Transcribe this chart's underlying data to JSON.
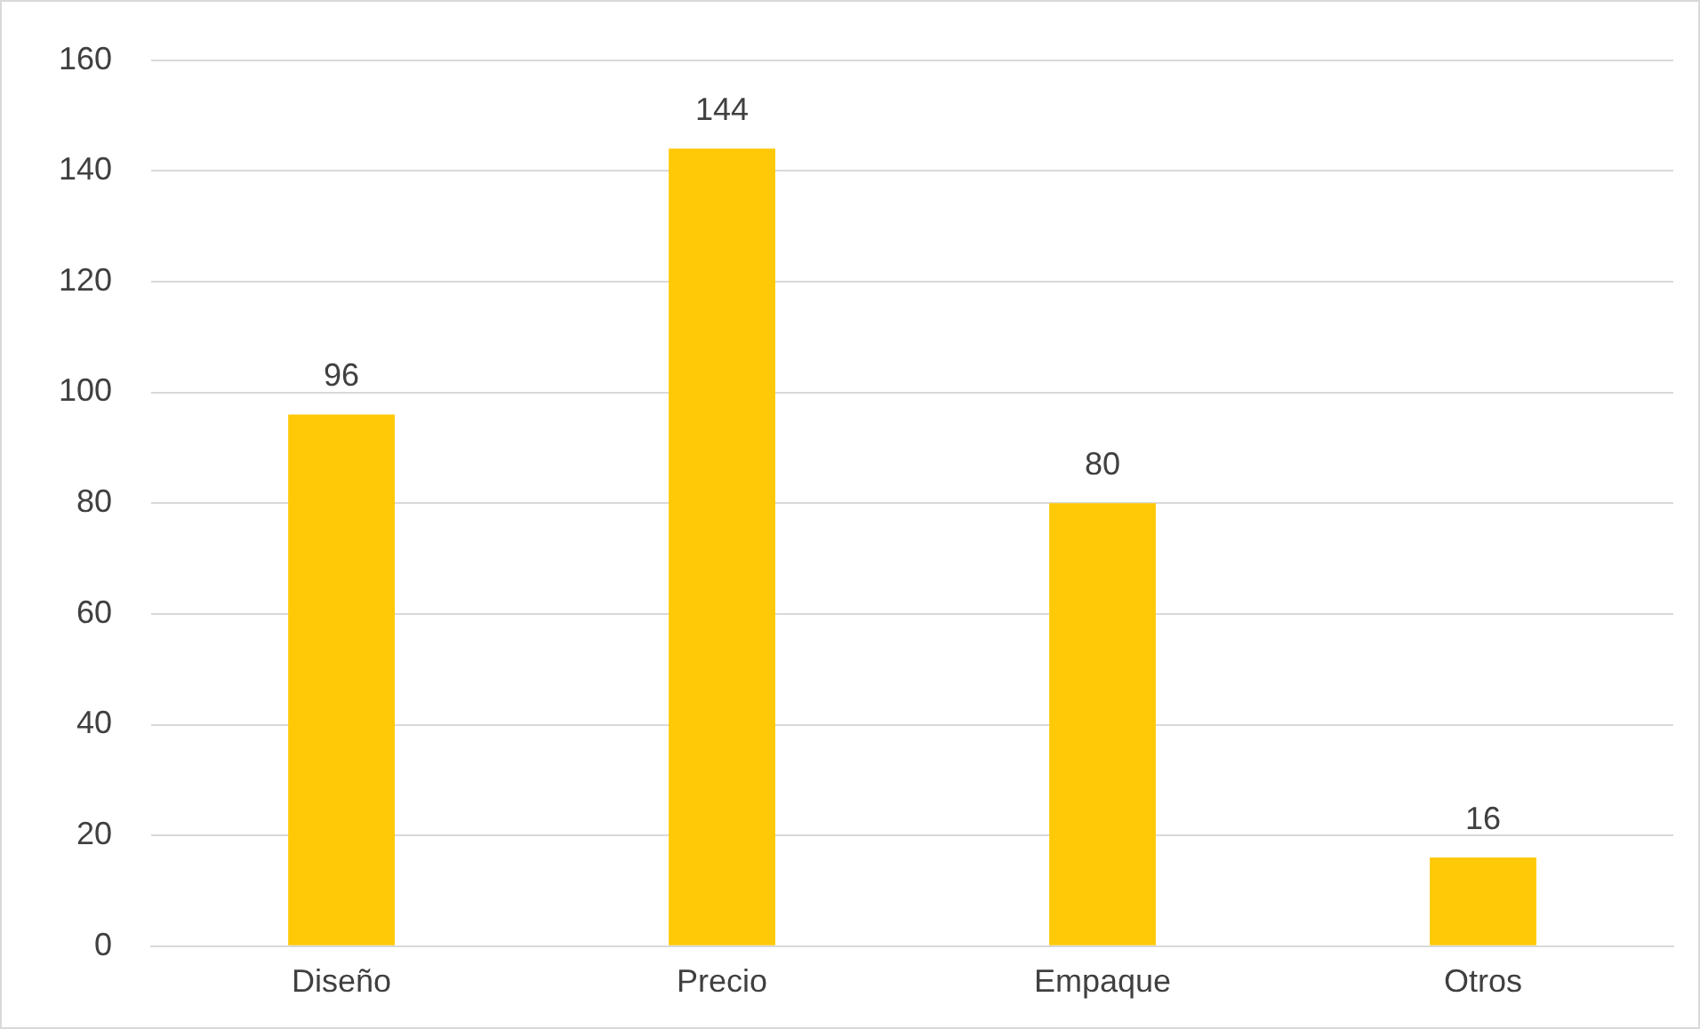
{
  "chart_data": {
    "type": "bar",
    "categories": [
      "Diseño",
      "Precio",
      "Empaque",
      "Otros"
    ],
    "values": [
      96,
      144,
      80,
      16
    ],
    "color": "#ffc907",
    "ylim": [
      0,
      160
    ],
    "yticks": [
      0,
      20,
      40,
      60,
      80,
      100,
      120,
      140,
      160
    ],
    "grid": "y",
    "data_labels": true,
    "legend": false
  }
}
